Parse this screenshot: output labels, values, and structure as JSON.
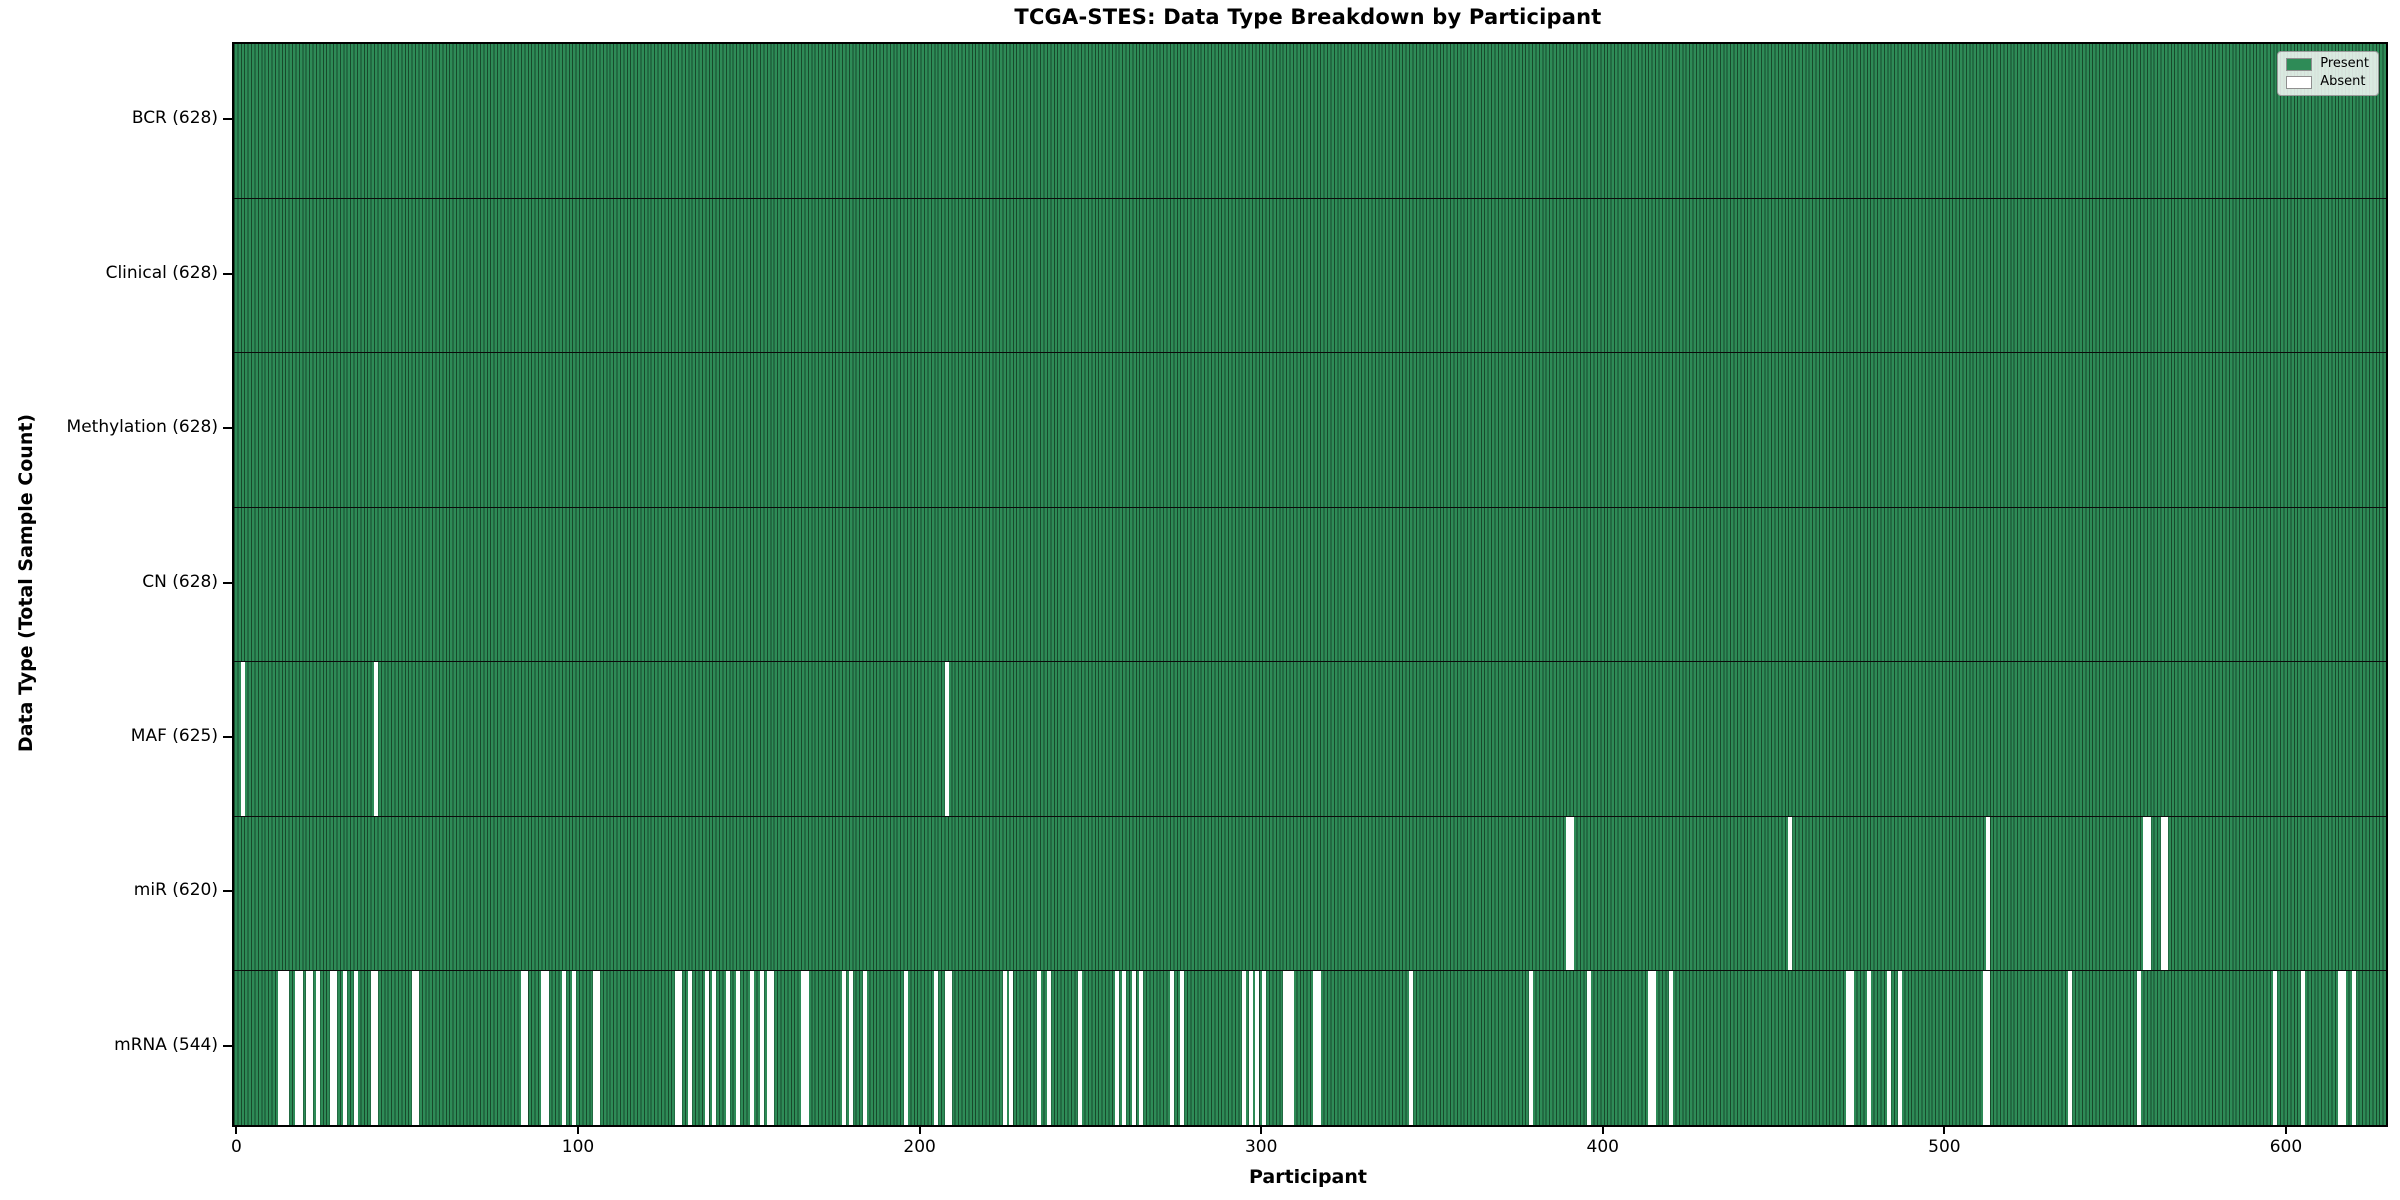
{
  "chart_data": {
    "type": "heatmap",
    "title": "TCGA-STES: Data Type Breakdown by Participant",
    "xlabel": "Participant",
    "ylabel": "Data Type (Total Sample Count)",
    "n_participants": 628,
    "x_ticks": [
      0,
      100,
      200,
      300,
      400,
      500,
      600
    ],
    "xlim": [
      -1.3,
      628.7
    ],
    "grid": false,
    "legend_position": "upper right",
    "legend": [
      {
        "label": "Present",
        "color": "#2e8b57"
      },
      {
        "label": "Absent",
        "color": "#ffffff"
      }
    ],
    "colors": {
      "present_fill": "#2e8b57",
      "bar_edge": "#174a2c",
      "absent_fill": "#ffffff",
      "row_divider": "#0b0b0b",
      "spine": "#000000"
    },
    "rows": [
      {
        "label": "BCR (628)",
        "name": "BCR",
        "present_count": 628,
        "absent_participants": []
      },
      {
        "label": "Clinical (628)",
        "name": "Clinical",
        "present_count": 628,
        "absent_participants": []
      },
      {
        "label": "Methylation (628)",
        "name": "Methylation",
        "present_count": 628,
        "absent_participants": []
      },
      {
        "label": "CN (628)",
        "name": "CN",
        "present_count": 628,
        "absent_participants": []
      },
      {
        "label": "MAF (625)",
        "name": "MAF",
        "present_count": 625,
        "absent_participants": [
          1,
          40,
          207
        ]
      },
      {
        "label": "miR (620)",
        "name": "miR",
        "present_count": 620,
        "absent_participants": [
          389,
          390,
          454,
          512,
          558,
          559,
          563,
          564
        ]
      },
      {
        "label": "mRNA (544)",
        "name": "mRNA",
        "present_count": 544,
        "absent_participants": [
          12,
          13,
          14,
          17,
          18,
          20,
          21,
          23,
          27,
          28,
          31,
          34,
          39,
          40,
          51,
          52,
          83,
          84,
          89,
          90,
          95,
          98,
          104,
          105,
          128,
          129,
          132,
          137,
          139,
          143,
          146,
          150,
          153,
          155,
          156,
          165,
          166,
          177,
          179,
          183,
          195,
          204,
          207,
          208,
          224,
          226,
          234,
          237,
          246,
          257,
          259,
          262,
          264,
          273,
          276,
          294,
          296,
          298,
          300,
          306,
          307,
          308,
          315,
          316,
          343,
          378,
          395,
          413,
          414,
          419,
          471,
          472,
          477,
          483,
          486,
          511,
          512,
          536,
          556,
          596,
          604,
          615,
          616,
          619
        ]
      }
    ]
  }
}
